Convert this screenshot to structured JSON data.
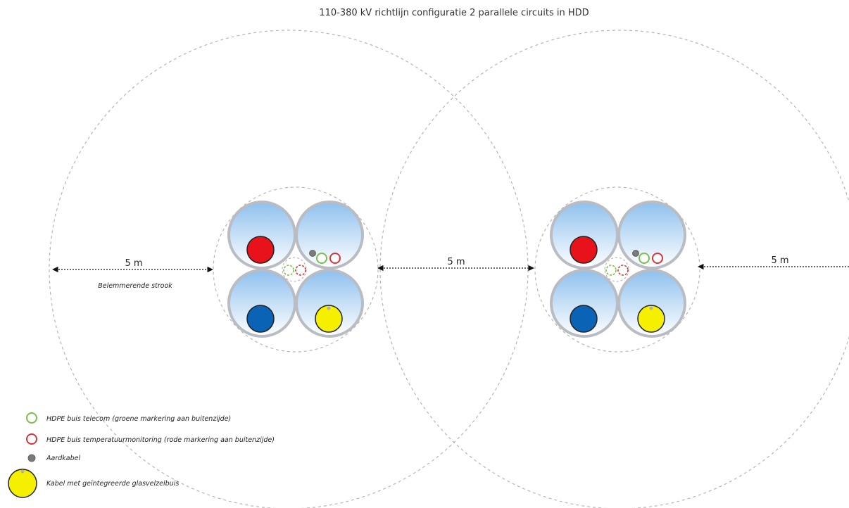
{
  "title": "110-380 kV richtlijn configuratie 2 parallele circuits in HDD",
  "dimensions": {
    "left": "5 m",
    "middle": "5 m",
    "right": "5 m"
  },
  "zone_label": "Belemmerende strook",
  "legend": [
    {
      "symbol": "green-ring",
      "label": "HDPE buis telecom (groene markering aan buitenzijde)"
    },
    {
      "symbol": "red-ring",
      "label": "HDPE buis temperatuurmonitoring (rode markering aan buitenzijde)"
    },
    {
      "symbol": "grey-dot",
      "label": "Aardkabel"
    },
    {
      "symbol": "yellow-disc",
      "label": "Kabel met geïntegreerde glasvelzelbuis"
    }
  ],
  "colors": {
    "phase_red": "#e8121b",
    "phase_blue": "#0b63b5",
    "phase_yellow": "#f5f000",
    "telecom_green": "#7bbf4a",
    "monitor_red": "#d9333a",
    "earth_grey": "#7a7a7a",
    "duct_rim": "#b9bcc2",
    "duct_fill_top": "#ffffff",
    "duct_fill_bottom": "#8ec0ee"
  }
}
